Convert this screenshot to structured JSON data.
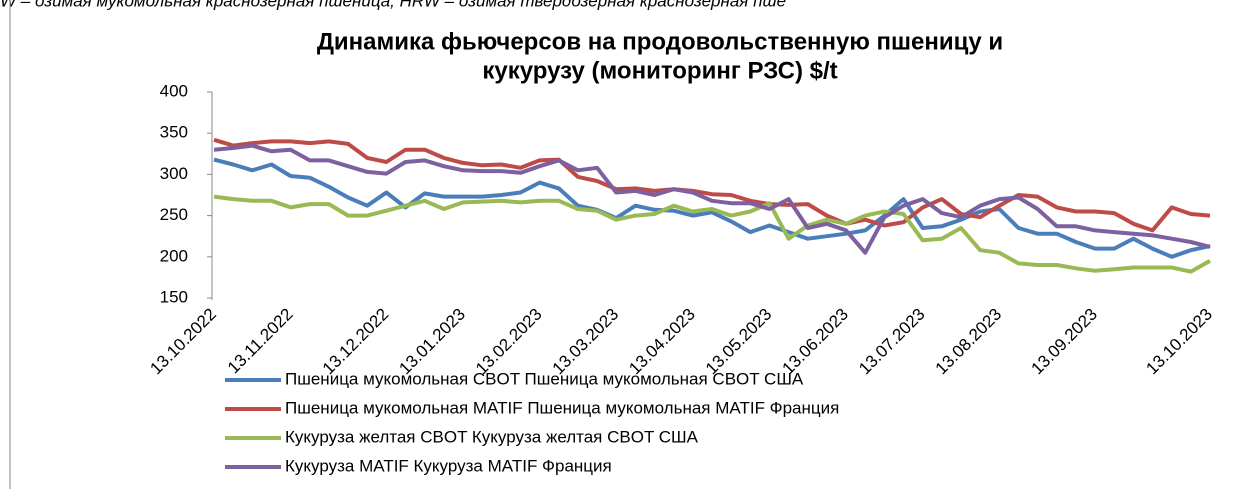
{
  "note": "W – озимая мукомольная краснозерная пшеница; HRW – озимая твердозерная краснозерная пше",
  "chart_data": {
    "type": "line",
    "title": [
      "Динамика фьючерсов на продовольственную пшеницу и",
      "кукурузу (мониторинг РЗС) $/t"
    ],
    "categories": [
      "13.10.2022",
      null,
      null,
      null,
      "13.11.2022",
      null,
      null,
      null,
      null,
      "13.12.2022",
      null,
      null,
      null,
      "13.01.2023",
      null,
      null,
      null,
      "13.02.2023",
      null,
      null,
      null,
      "13.03.2023",
      null,
      null,
      null,
      "13.04.2023",
      null,
      null,
      null,
      "13.05.2023",
      null,
      null,
      null,
      "13.06.2023",
      null,
      null,
      null,
      "13.07.2023",
      null,
      null,
      null,
      "13.08.2023",
      null,
      null,
      null,
      null,
      "13.09.2023",
      null,
      null,
      null,
      null,
      null,
      "13.10.2023"
    ],
    "series": [
      {
        "name": "Пшеница мукомольная CBOT Пшеница мукомольная CBOT США",
        "color": "#4a7ebb",
        "values": [
          318,
          312,
          305,
          312,
          298,
          296,
          285,
          272,
          262,
          278,
          260,
          277,
          273,
          273,
          273,
          275,
          278,
          290,
          283,
          262,
          257,
          247,
          262,
          257,
          256,
          250,
          254,
          243,
          230,
          238,
          230,
          222,
          225,
          228,
          232,
          250,
          270,
          235,
          237,
          245,
          255,
          258,
          235,
          228,
          228,
          218,
          210,
          210,
          222,
          210,
          200,
          208,
          213
        ]
      },
      {
        "name": "Пшеница мукомольная MATIF Пшеница мукомольная MATIF Франция",
        "color": "#be4b48",
        "values": [
          342,
          335,
          338,
          340,
          340,
          338,
          340,
          337,
          320,
          315,
          330,
          330,
          320,
          314,
          311,
          312,
          308,
          317,
          318,
          297,
          292,
          282,
          283,
          280,
          282,
          280,
          276,
          275,
          268,
          264,
          263,
          264,
          250,
          240,
          245,
          238,
          242,
          260,
          270,
          252,
          248,
          262,
          275,
          273,
          260,
          255,
          255,
          253,
          240,
          232,
          260,
          252,
          250
        ]
      },
      {
        "name": "Кукуруза желтая CBOT Кукуруза желтая CBOT США",
        "color": "#98b954",
        "values": [
          273,
          270,
          268,
          268,
          260,
          264,
          264,
          250,
          250,
          256,
          262,
          268,
          258,
          266,
          267,
          268,
          266,
          268,
          268,
          258,
          256,
          245,
          250,
          252,
          262,
          255,
          258,
          250,
          255,
          265,
          222,
          238,
          245,
          240,
          250,
          255,
          252,
          220,
          222,
          235,
          208,
          205,
          192,
          190,
          190,
          186,
          183,
          185,
          187,
          187,
          187,
          182,
          195
        ]
      },
      {
        "name": "Кукуруза MATIF Кукуруза MATIF Франция",
        "color": "#7d60a0",
        "values": [
          330,
          332,
          335,
          328,
          330,
          317,
          317,
          310,
          303,
          301,
          315,
          317,
          310,
          305,
          304,
          304,
          302,
          310,
          317,
          305,
          308,
          278,
          280,
          275,
          282,
          278,
          268,
          265,
          265,
          258,
          270,
          235,
          240,
          232,
          205,
          248,
          262,
          270,
          253,
          248,
          262,
          270,
          272,
          258,
          237,
          237,
          232,
          230,
          228,
          226,
          222,
          218,
          212
        ]
      }
    ],
    "ylim": [
      150,
      400
    ],
    "yticks": [
      150,
      200,
      250,
      300,
      350,
      400
    ],
    "grid": false
  }
}
